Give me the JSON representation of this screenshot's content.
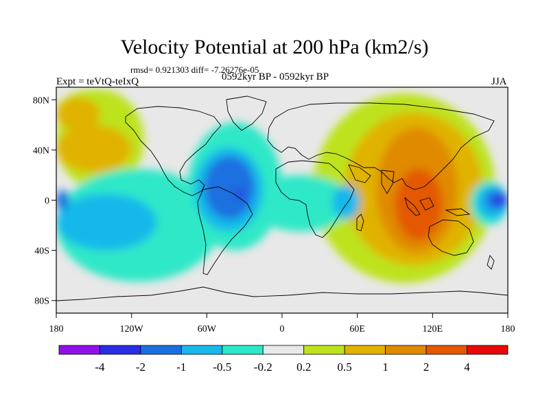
{
  "title": "Velocity Potential at 200 hPa (km2/s)",
  "stats": "rmsd= 0.921303 diff= -7.26276e-05",
  "experiment": "Expt = teVtQ-teIxQ",
  "period": "0592kyr BP - 0592kyr BP",
  "season": "JJA",
  "map": {
    "lon_range": [
      -180,
      180
    ],
    "lat_range": [
      -90,
      90
    ],
    "x_ticks": [
      {
        "lon": -180,
        "label": "180"
      },
      {
        "lon": -120,
        "label": "120W"
      },
      {
        "lon": -60,
        "label": "60W"
      },
      {
        "lon": 0,
        "label": "0"
      },
      {
        "lon": 60,
        "label": "60E"
      },
      {
        "lon": 120,
        "label": "120E"
      },
      {
        "lon": 180,
        "label": "180"
      }
    ],
    "y_ticks": [
      {
        "lat": 80,
        "label": "80N"
      },
      {
        "lat": 40,
        "label": "40N"
      },
      {
        "lat": 0,
        "label": "0"
      },
      {
        "lat": -40,
        "label": "40S"
      },
      {
        "lat": -80,
        "label": "80S"
      }
    ],
    "background_color": "#e8e8e8"
  },
  "colorbar": {
    "colors": [
      "#8f10e8",
      "#2a2ce6",
      "#1a6fe0",
      "#19b8ea",
      "#2de8c8",
      "#e8e8e8",
      "#bde31e",
      "#e0b300",
      "#e08a00",
      "#e35800",
      "#e80808"
    ],
    "labels": [
      "-4",
      "-2",
      "-1",
      "-0.5",
      "-0.2",
      "0.2",
      "0.5",
      "1",
      "2",
      "4"
    ]
  },
  "contour_fields": [
    {
      "level": "0.2",
      "color": "#bde31e",
      "regions": [
        {
          "lon": [
            -180,
            -120
          ],
          "lat": [
            52,
            88
          ]
        },
        {
          "lon": [
            -180,
            -110
          ],
          "lat": [
            8,
            88
          ]
        },
        {
          "lon": [
            -165,
            -125
          ],
          "lat": [
            -25,
            15
          ]
        },
        {
          "lon": [
            10,
            42
          ],
          "lat": [
            -20,
            22
          ]
        },
        {
          "lon": [
            25,
            170
          ],
          "lat": [
            -66,
            85
          ]
        }
      ]
    },
    {
      "level": "0.5",
      "color": "#e0b300",
      "regions": [
        {
          "lon": [
            -180,
            -145
          ],
          "lat": [
            55,
            82
          ]
        },
        {
          "lon": [
            -180,
            -120
          ],
          "lat": [
            22,
            60
          ]
        },
        {
          "lon": [
            50,
            160
          ],
          "lat": [
            -52,
            70
          ]
        },
        {
          "lon": [
            10,
            40
          ],
          "lat": [
            -15,
            15
          ]
        }
      ]
    },
    {
      "level": "1",
      "color": "#e08a00",
      "regions": [
        {
          "lon": [
            75,
            140
          ],
          "lat": [
            -42,
            58
          ]
        },
        {
          "lon": [
            18,
            32
          ],
          "lat": [
            -8,
            8
          ]
        }
      ]
    },
    {
      "level": "2",
      "color": "#e35800",
      "regions": [
        {
          "lon": [
            90,
            128
          ],
          "lat": [
            -32,
            25
          ]
        }
      ]
    },
    {
      "level": "-0.2",
      "color": "#2de8c8",
      "regions": [
        {
          "lon": [
            -180,
            -50
          ],
          "lat": [
            -65,
            25
          ]
        },
        {
          "lon": [
            -75,
            0
          ],
          "lat": [
            -40,
            62
          ]
        },
        {
          "lon": [
            -25,
            55
          ],
          "lat": [
            -25,
            20
          ]
        },
        {
          "lon": [
            150,
            180
          ],
          "lat": [
            -20,
            15
          ]
        }
      ]
    },
    {
      "level": "-0.5",
      "color": "#19b8ea",
      "regions": [
        {
          "lon": [
            -180,
            -100
          ],
          "lat": [
            -40,
            5
          ]
        },
        {
          "lon": [
            -70,
            -15
          ],
          "lat": [
            -25,
            42
          ]
        },
        {
          "lon": [
            40,
            62
          ],
          "lat": [
            -15,
            12
          ]
        },
        {
          "lon": [
            155,
            180
          ],
          "lat": [
            -15,
            12
          ]
        }
      ]
    },
    {
      "level": "-1",
      "color": "#1a6fe0",
      "regions": [
        {
          "lon": [
            -62,
            -22
          ],
          "lat": [
            -15,
            35
          ]
        },
        {
          "lon": [
            162,
            180
          ],
          "lat": [
            -8,
            8
          ]
        },
        {
          "lon": [
            -180,
            -170
          ],
          "lat": [
            -8,
            8
          ]
        }
      ]
    },
    {
      "level": "-2",
      "color": "#2a2ce6",
      "regions": [
        {
          "lon": [
            -38,
            -30
          ],
          "lat": [
            2,
            8
          ]
        },
        {
          "lon": [
            168,
            180
          ],
          "lat": [
            -4,
            4
          ]
        }
      ]
    }
  ]
}
